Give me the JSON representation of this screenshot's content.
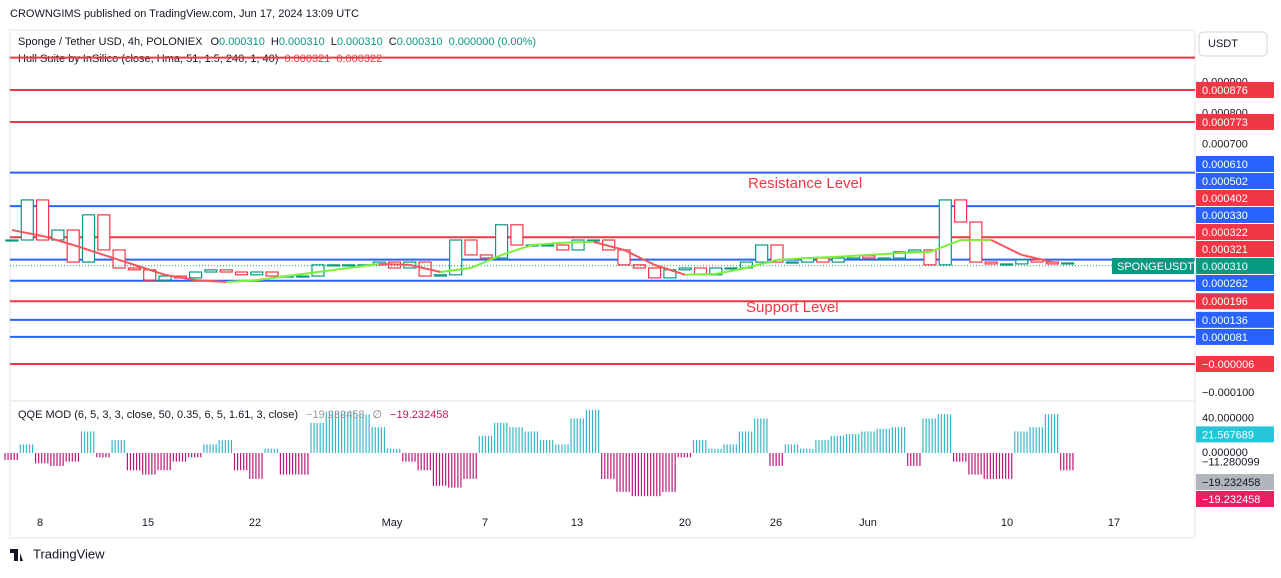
{
  "header": {
    "publisher": "CROWNGIMS published on TradingView.com, Jun 17, 2024 13:09 UTC"
  },
  "chart_data": {
    "type": "line",
    "symbol": "Sponge / Tether USD, 4h, POLONIEX",
    "ohlc": [
      {
        "key": "O",
        "value": 0.00031,
        "label": "0.000310"
      },
      {
        "key": "H",
        "value": 0.00031,
        "label": "0.000310"
      },
      {
        "key": "L",
        "value": 0.00031,
        "label": "0.000310"
      },
      {
        "key": "C",
        "value": 0.00031,
        "label": "0.000310"
      }
    ],
    "change": "0.000000 (0.00%)",
    "indicator": "Hull Suite by InSilico (close, Hma, 51, 1.5, 240, 1, 40)",
    "indicator_values": [
      {
        "value": 0.000321,
        "label": "0.000321"
      },
      {
        "value": 0.000322,
        "label": "0.000322"
      }
    ],
    "currency": "USDT",
    "ticker": "SPONGEUSDT",
    "ylim": [
      -0.000122,
      0.001069
    ],
    "yticks": [
      {
        "value": 0.0009,
        "label": "0.000900"
      },
      {
        "value": 0.0008,
        "label": "0.000800"
      },
      {
        "value": 0.0007,
        "label": "0.000700"
      },
      {
        "value": -0.0001,
        "label": "−0.000100"
      }
    ],
    "levels": [
      {
        "value": 0.00098,
        "color": "#f23645"
      },
      {
        "value": 0.000876,
        "label": "0.000876",
        "color": "#f23645"
      },
      {
        "value": 0.000773,
        "label": "0.000773",
        "color": "#f23645"
      },
      {
        "value": 0.00061,
        "label": "0.000610",
        "color": "#2962ff"
      },
      {
        "value": 0.000502,
        "label": "0.000502",
        "color": "#2962ff"
      },
      {
        "value": 0.000402,
        "label": "0.000402",
        "color": "#f23645"
      },
      {
        "value": 0.00033,
        "label": "0.000330",
        "color": "#2962ff"
      },
      {
        "value": 0.000262,
        "label": "0.000262",
        "color": "#2962ff"
      },
      {
        "value": 0.000196,
        "label": "0.000196",
        "color": "#f23645"
      },
      {
        "value": 0.000136,
        "label": "0.000136",
        "color": "#2962ff"
      },
      {
        "value": 8.1e-05,
        "label": "0.000081",
        "color": "#2962ff"
      },
      {
        "value": -6e-06,
        "label": "−0.000006",
        "color": "#f23645"
      }
    ],
    "annotations": [
      "Resistance Level",
      "Support Level"
    ],
    "xticks": [
      "8",
      "15",
      "22",
      "May",
      "7",
      "13",
      "20",
      "26",
      "Jun",
      "10",
      "17"
    ],
    "price": {
      "up_color": "#089981",
      "down_color": "#f23645",
      "values": [
        0.000393,
        0.000522,
        0.000393,
        0.000425,
        0.000322,
        0.000474,
        0.000361,
        0.000303,
        0.000297,
        0.000264,
        0.000277,
        0.000271,
        0.00029,
        0.000297,
        0.00029,
        0.000281,
        0.00029,
        0.000277,
        0.000277,
        0.000277,
        0.000313,
        0.000313,
        0.000313,
        0.000313,
        0.000322,
        0.000303,
        0.000322,
        0.000277,
        0.000281,
        0.000393,
        0.000345,
        0.000335,
        0.000442,
        0.000377,
        0.000377,
        0.000377,
        0.000361,
        0.000393,
        0.000393,
        0.000361,
        0.000313,
        0.000303,
        0.000271,
        0.000297,
        0.000303,
        0.000281,
        0.000303,
        0.000303,
        0.000322,
        0.000377,
        0.000322,
        0.000322,
        0.000335,
        0.000322,
        0.000335,
        0.000342,
        0.000335,
        0.000335,
        0.000355,
        0.000361,
        0.000313,
        0.000522,
        0.000451,
        0.000322,
        0.000316,
        0.000316,
        0.000329,
        0.000322,
        0.000316,
        0.000319
      ]
    },
    "hull": {
      "up_color": "#7cf13a",
      "down_color": "#f5575c",
      "values": [
        0.000425,
        0.000406,
        0.000377,
        0.000345,
        0.000313,
        0.000281,
        0.000264,
        0.000258,
        0.000264,
        0.000277,
        0.00029,
        0.000303,
        0.000316,
        0.000313,
        0.00029,
        0.000303,
        0.000345,
        0.000377,
        0.000384,
        0.000387,
        0.000361,
        0.000313,
        0.000281,
        0.000284,
        0.000303,
        0.000329,
        0.000335,
        0.000339,
        0.000345,
        0.000351,
        0.000355,
        0.000393,
        0.000393,
        0.000345,
        0.000322
      ]
    },
    "current_price_color": "#089981",
    "qqe": {
      "title": "QQE MOD (6, 5, 3, 3, close, 50, 0.35, 6, 5, 1.61, 3, close)",
      "legend_values": [
        {
          "value": -19.232458,
          "label": "−19.232458",
          "color": "#9598a1"
        },
        {
          "symbol": "∅"
        },
        {
          "value": -19.232458,
          "label": "−19.232458",
          "color": "#c2185b"
        }
      ],
      "ylim": [
        -66,
        55.6
      ],
      "yticks": [
        {
          "value": 40,
          "label": "40.000000"
        },
        {
          "value": 0,
          "label": "0.000000"
        },
        {
          "value": -11.280099,
          "label": "−11.280099"
        }
      ],
      "markers": [
        {
          "value": 21.567689,
          "label": "21.567689",
          "color": "#26c6da"
        },
        {
          "value": -19.232458,
          "label": "−19.232458",
          "color": "#b2b5be"
        },
        {
          "value": -19.232458,
          "label": "−19.232458",
          "color": "#e91e63"
        }
      ],
      "pos_color": "#38b6c9",
      "neg_color": "#b7167a",
      "values": [
        -8,
        10,
        -12,
        -15,
        -10,
        25,
        -5,
        15,
        -20,
        -25,
        -20,
        -10,
        -5,
        10,
        15,
        -20,
        -30,
        5,
        -25,
        -25,
        35,
        48,
        48,
        45,
        30,
        5,
        -10,
        -20,
        -38,
        -40,
        -30,
        20,
        35,
        30,
        25,
        15,
        10,
        40,
        50,
        -30,
        -45,
        -50,
        -50,
        -45,
        -5,
        15,
        5,
        10,
        25,
        40,
        -15,
        10,
        5,
        15,
        20,
        22,
        25,
        28,
        30,
        -15,
        40,
        45,
        -10,
        -25,
        -30,
        -30,
        25,
        30,
        45,
        -20
      ]
    }
  },
  "footer": {
    "brand": "TradingView"
  }
}
